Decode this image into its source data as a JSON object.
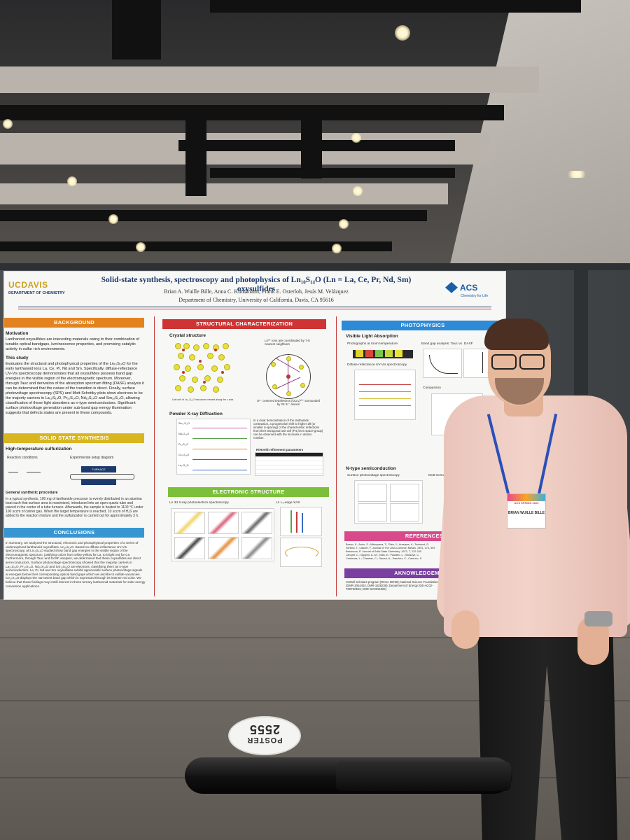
{
  "poster": {
    "university": "UCDAVIS",
    "department_logo": "DEPARTMENT OF CHEMISTRY",
    "title": "Solid-state synthesis, spectroscopy and photophysics of Ln₁₀S₁₄O (Ln = La, Ce, Pr, Nd, Sm) oxysulfides",
    "authors": "Brian A. Wuille Bille, Anna C. Kundmann, Frank E. Osterloh, Jesús M. Velázquez",
    "affiliation": "Department of Chemistry, University of California, Davis, CA 95616",
    "acs_name": "ACS",
    "acs_tagline": "Chemistry for Life",
    "sections": {
      "background": "BACKGROUND",
      "solid_state": "SOLID STATE SYNTHESIS",
      "conclusions": "CONCLUSIONS",
      "structural": "STRUCTURAL CHARACTERIZATION",
      "electronic": "ELECTRONIC STRUCTURE",
      "photophysics": "PHOTOPHYSICS",
      "references": "REFERENCES",
      "acknowledgements": "AKNOWLEDGEMENTS"
    },
    "background": {
      "motivation_head": "Motivation",
      "motivation": "Lanthanoid oxysulfides are interesting materials owing to their combination of tunable optical bandgaps, luminescence properties, and promising catalytic activity in sulfur rich environments.",
      "study_head": "This study",
      "study": "Evaluates the structural and photophysical properties of the Ln₁₀S₁₄O for the early lanthanoid ions La, Ce, Pr, Nd and Sm. Specifically, diffuse-reflectance UV-Vis spectroscopy demonstrates that all oxysulfides possess band gap energies in the visible region of the electromagnetic spectrum. Moreover, through Tauc and derivation of the absorption spectrum fitting (DASF) analysis it can be determined that the nature of the transition is direct. Finally, surface photovoltage spectroscopy (SPS) and Mott-Schottky plots show electrons to be the majority carriers in La₁₀S₁₄O, Pr₁₀S₁₄O, Nd₁₀S₁₄O and Sm₁₀S₁₄O, allowing classification of these light absorbers as n-type semiconductors. Significant surface photovoltage generation under sub-band gap energy illumination suggests that defects states are present in these compounds."
    },
    "synthesis": {
      "head": "High-temperature sulfurization",
      "reaction_head": "Reaction conditions",
      "setup_head": "Experimental setup diagram",
      "furnace": "FURNACE",
      "general_head": "General synthetic procedure",
      "general": "In a typical synthesis, 100 mg of lanthanide precursor is evenly distributed in an alumina boat such that surface area is maximized, introduced into an open quartz tube and placed in the center of a tube furnace. Afterwards, the sample is heated to 1100 °C under 100 sccm of carrier gas. When the target temperature is reached, 10 sccm of H₂S are added to the reaction mixture and the sulfurization is carried out for approximately 3 h."
    },
    "conclusions": "In summary, we analyzed the structural, electronic and photophysical properties of a series of underexplored lanthanoid oxysulfides, Ln₁₀S₁₄O. Based on diffuse-reflectance UV-Vis spectroscopy, all Ln₁₀S₁₄O studied show band gap energies in the visible region of the electromagnetic spectrum, justifying colors from white-yellow for La, to bright red for Ce. Furthermore, through Tauc and DASF analysis, we determined that these oxysulfides are direct semi-conductors. Surface photovoltage spectroscopy showed that the majority carriers in La₁₀S₁₄O, Pr₁₀S₁₄O, Nd₁₀S₁₄O and Sm₁₀S₁₄O are electrons, classifying them as n-type semiconductors. La, Pr, Nd and Sm oxysulfides exhibit appreciable surface photovoltage signals at energies below their corresponding optical band gaps which we ascribe to sulfide vacancies. Ce₁₀S₁₄O displays the narrowest band gap which is expressed through its intense red color. We believe that these findings may instill interest in these ternary lanthanoid materials for solar energy conversion applications.",
    "structural": {
      "crystal_head": "Crystal structure",
      "crystal_note": "Ln³⁺ ions are coordinated by 7-8 nearest neighbors",
      "tetra_note": "O²⁻ centered tetrahedron [OLn₄]¹⁰⁺ surrounded by 20 S²⁻ anions",
      "unit_cell": "Unit cell of Ln₁₀S₁₄O structures viewed along the c axis",
      "xrd_head": "Powder X-ray Diffraction",
      "xrd_note": "In a clear demonstration of the lanthanide contraction, a progressive shift to higher 2θ (or smaller d-spacing) of the characteristic reflections from their tetragonal unit cell (P4₂/ncm space group) can be observed with the increase in atomic number.",
      "rietveld": "Rietveld refinement parameters",
      "xrd_samples": [
        "Sm₁₀S₁₄O",
        "Nd₁₀S₁₄O",
        "Pr₁₀S₁₄O",
        "Ce₁₀S₁₄O",
        "La₁₀S₁₄O"
      ]
    },
    "electronic": {
      "xps_head": "Ln 3d X-ray photoelectron spectroscopy",
      "xas_head": "Ln L₃-edge XAS"
    },
    "photophysics": {
      "vis_head": "Visible Light Absorption",
      "photo_head": "Photographs at room temperature",
      "band_head": "Band gap analysis: Tauc vs. DASF",
      "drs_head": "Diffuse reflectance UV-Vis spectroscopy",
      "comparison": "Comparison",
      "ntype_head": "N-type semiconduction",
      "sps_head": "Surface photovoltage spectroscopy",
      "mott": "Mott-Schottky",
      "colors": [
        "#2b2b2b",
        "#e3d22b",
        "#d9463a",
        "#7ec64a",
        "#c9d640",
        "#e7e33c"
      ]
    },
    "references": [
      "Besan, K.; Ando, S.; Mitsuyama, T.; Ohta, Y.; Arasawa, K.; Tsutsumi, R.",
      "Schleid, T.; Lissner, F. Journal of The Less-Common Metals. 1991, 175, 309",
      "Besancon, P. Journal of Solid State Chemistry. 1973, 7, 232-240",
      "Larquet, C.; Nguyen, A.-M.; Glais, E.; Paulatto, L.; Sassoye, C.",
      "Cardenas, L.; Chanéac, C.; Gauzzi, A.; Sanchez, C.; Carenco, S."
    ],
    "acknowledgements": "Cottrell Scholars program (RCSA 26780); National Science Foundations (DMR-2044403, DMR-1828238); Department of Energy (DE-AC02-76SF00515, DOE-SC0015326)"
  },
  "badge": {
    "event": "ACS SPRING 2023",
    "name": "BRIAN WUILLE BILLE"
  },
  "floor_sign": {
    "line1": "POSTER",
    "line2": "2555"
  }
}
